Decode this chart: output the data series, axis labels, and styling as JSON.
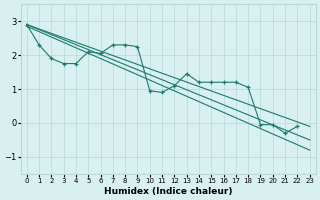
{
  "xlabel": "Humidex (Indice chaleur)",
  "ylabel": "",
  "bg_color": "#d8f0f0",
  "grid_color": "#b8d8d8",
  "line_color": "#1a7a6e",
  "xlim": [
    -0.5,
    23.5
  ],
  "ylim": [
    -1.5,
    3.5
  ],
  "yticks": [
    -1,
    0,
    1,
    2,
    3
  ],
  "xticks": [
    0,
    1,
    2,
    3,
    4,
    5,
    6,
    7,
    8,
    9,
    10,
    11,
    12,
    13,
    14,
    15,
    16,
    17,
    18,
    19,
    20,
    21,
    22,
    23
  ],
  "series": [
    {
      "x": [
        0,
        1,
        2,
        3,
        4,
        5,
        6,
        7,
        8,
        9,
        10,
        11,
        12,
        13,
        14,
        15,
        16,
        17,
        18,
        19,
        20,
        21,
        22
      ],
      "y": [
        2.9,
        2.3,
        1.9,
        1.75,
        1.75,
        2.1,
        2.05,
        2.3,
        2.3,
        2.25,
        0.95,
        0.9,
        1.1,
        1.45,
        1.2,
        1.2,
        1.2,
        1.2,
        1.05,
        -0.05,
        -0.05,
        -0.3,
        -0.1
      ],
      "marker": true
    },
    {
      "x": [
        0,
        23
      ],
      "y": [
        2.9,
        -0.1
      ],
      "marker": false
    },
    {
      "x": [
        0,
        23
      ],
      "y": [
        2.9,
        -0.5
      ],
      "marker": false
    },
    {
      "x": [
        0,
        23
      ],
      "y": [
        2.85,
        -0.8
      ],
      "marker": false
    }
  ]
}
